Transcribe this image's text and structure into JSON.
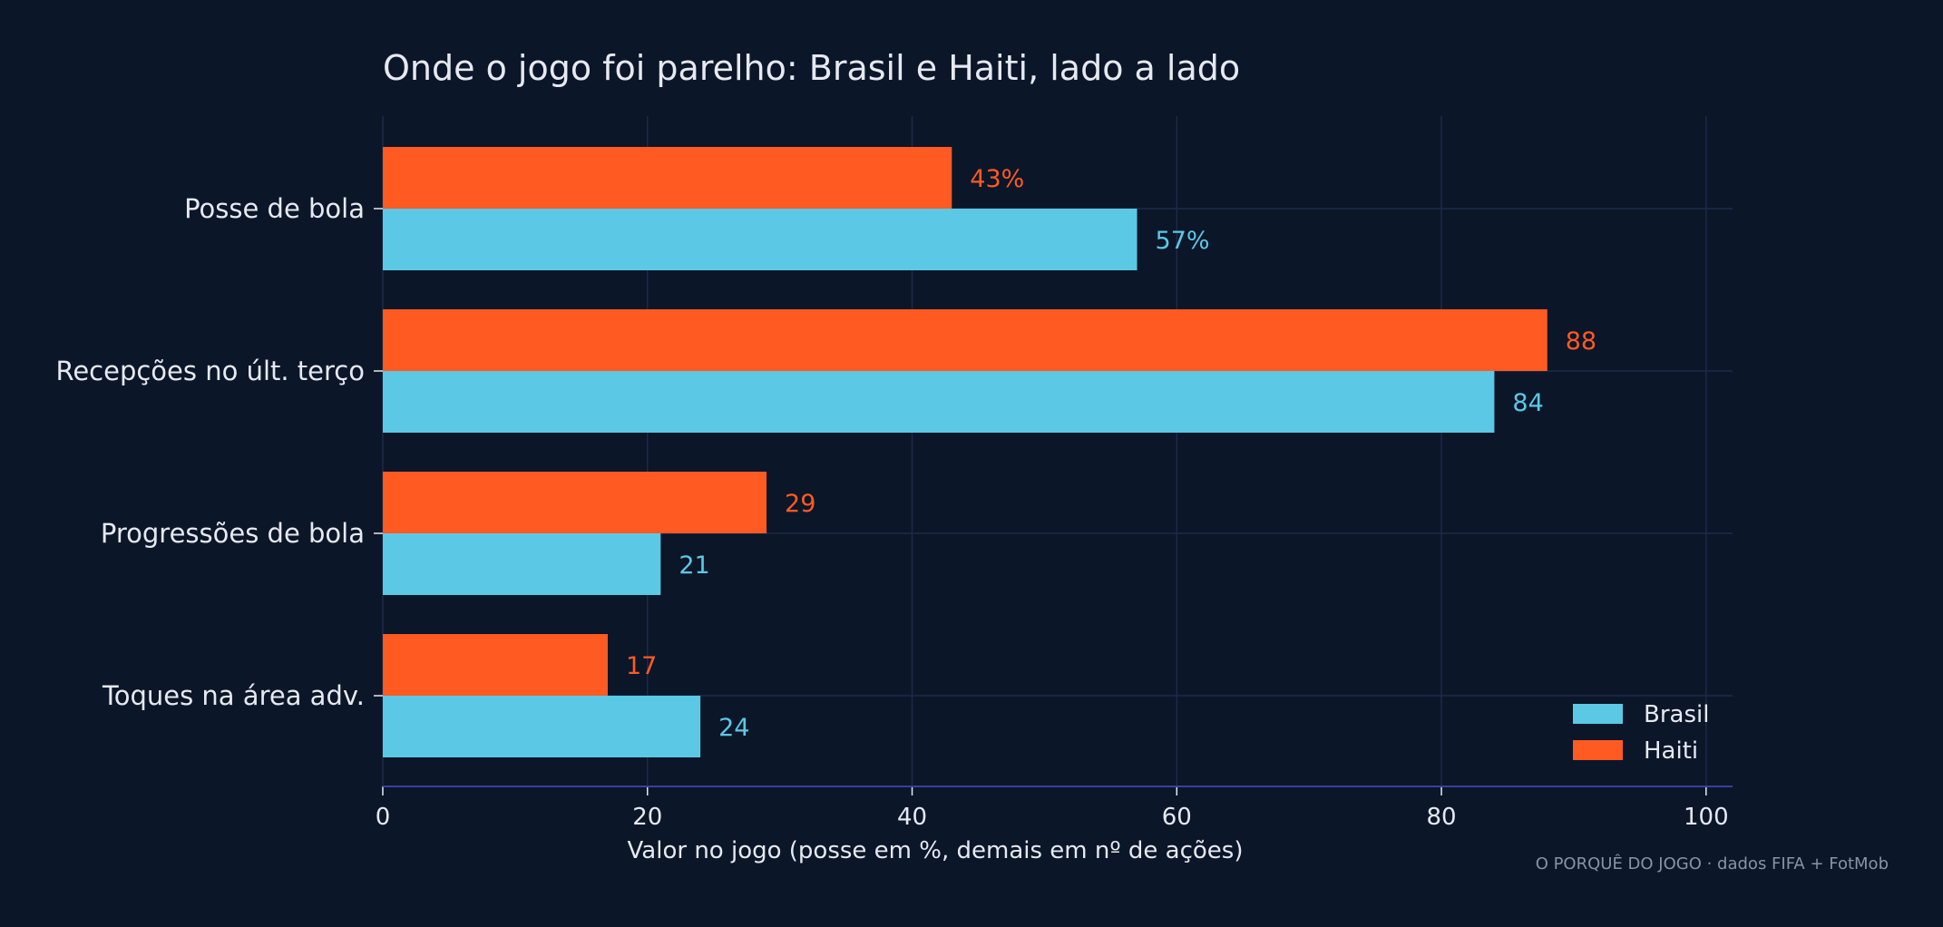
{
  "chart_data": {
    "type": "bar",
    "orientation": "horizontal",
    "title": "Onde o jogo foi parelho: Brasil e Haiti, lado a lado",
    "xlabel": "Valor no jogo (posse em %, demais em nº de ações)",
    "ylabel": "",
    "xlim": [
      0,
      102
    ],
    "xticks": [
      0,
      20,
      40,
      60,
      80,
      100
    ],
    "grid": true,
    "legend": "bottom-right",
    "categories": [
      "Posse de bola",
      "Recepções no últ. terço",
      "Progressões de bola",
      "Toques na área adv."
    ],
    "series": [
      {
        "name": "Brasil",
        "color": "#5bc8e6",
        "values": [
          57,
          84,
          21,
          24
        ],
        "labels": [
          "57%",
          "84",
          "21",
          "24"
        ]
      },
      {
        "name": "Haiti",
        "color": "#ff5a22",
        "values": [
          43,
          88,
          29,
          17
        ],
        "labels": [
          "43%",
          "88",
          "29",
          "17"
        ]
      }
    ],
    "colors": {
      "background": "#0b1629",
      "grid": "#1c2a4a",
      "axis": "#3a3fa0",
      "text": "#e6e9f0",
      "source": "#8a93a6"
    }
  },
  "source_note": "O PORQUÊ DO JOGO · dados FIFA + FotMob"
}
